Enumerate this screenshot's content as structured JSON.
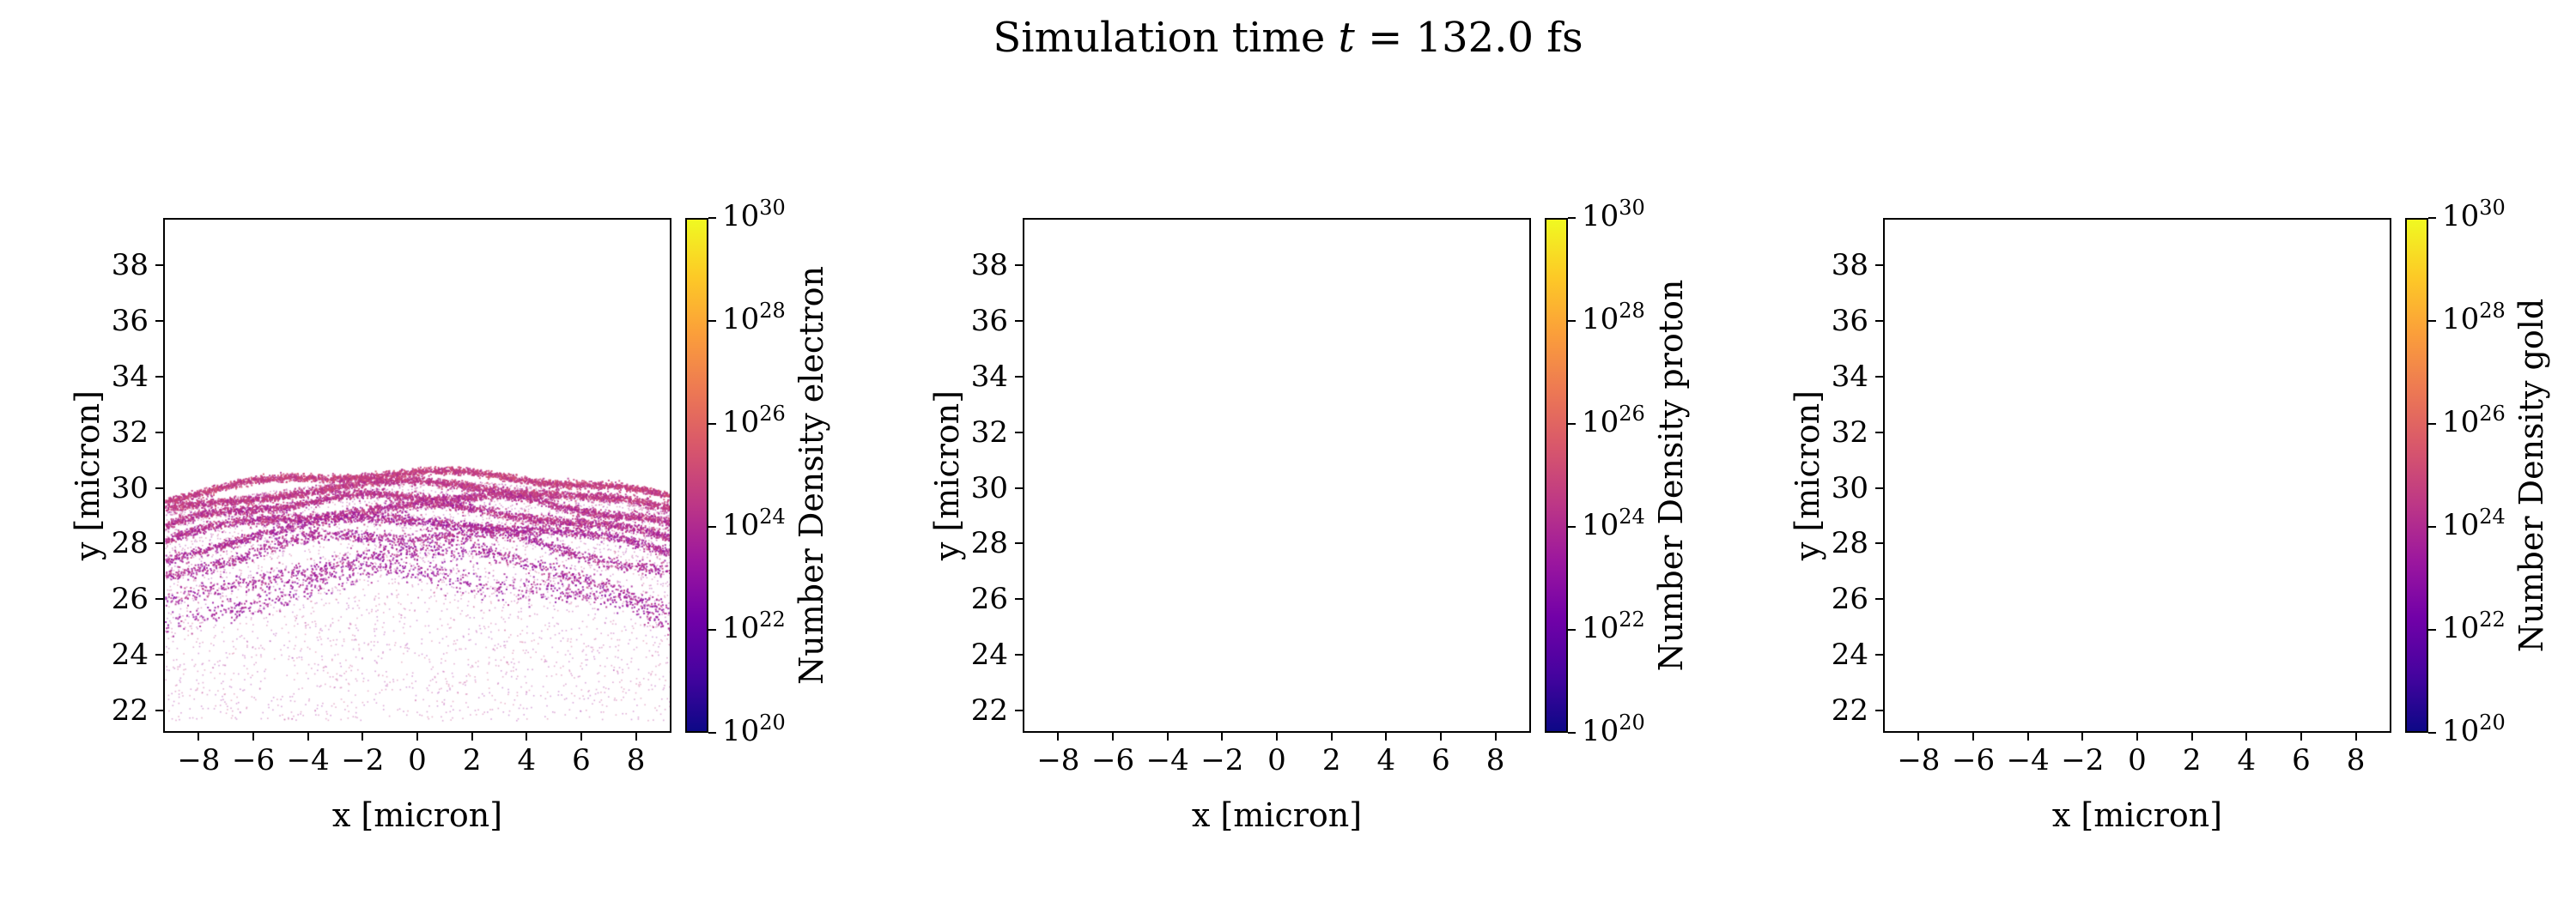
{
  "title": {
    "prefix": "Simulation time ",
    "math_var": "t",
    "suffix": " = 132.0 fs"
  },
  "colors": {
    "background": "#ffffff",
    "axis": "#000000",
    "plasma_stops": [
      "#0d0887",
      "#46039f",
      "#7201a8",
      "#9c179e",
      "#bd3786",
      "#d8576b",
      "#ed7953",
      "#fb9f3a",
      "#fdca26",
      "#f0f921"
    ]
  },
  "chart_data": [
    {
      "type": "scatter",
      "species": "electron",
      "xlabel": "x [micron]",
      "ylabel": "y [micron]",
      "xlim": [
        -9.3,
        9.3
      ],
      "ylim": [
        21.2,
        39.7
      ],
      "xticks": [
        -8,
        -6,
        -4,
        -2,
        0,
        2,
        4,
        6,
        8
      ],
      "yticks": [
        22,
        24,
        26,
        28,
        30,
        32,
        34,
        36,
        38
      ],
      "grid": false,
      "colorbar": {
        "label": "Number Density electron",
        "scale": "log",
        "tick_exponents": [
          20,
          22,
          24,
          26,
          28,
          30
        ],
        "range_exponents": [
          20,
          30
        ],
        "colormap": "plasma"
      },
      "content": {
        "empty": false,
        "note": "dense filamentary electron layers arcing across x, concentrated near y = 28-30.7 micron, with a diffuse low-density halo extending down to y = 22",
        "filaments": [
          {
            "y0": 30.55,
            "sag": 0.9,
            "wiggle": 0.12,
            "freq": 0.9,
            "phase": 0.5,
            "sigma": 0.07,
            "points": 2600,
            "t": [
              0.4,
              0.54
            ]
          },
          {
            "y0": 30.15,
            "sag": 1.0,
            "wiggle": 0.15,
            "freq": 0.7,
            "phase": 2.1,
            "sigma": 0.08,
            "points": 2500,
            "t": [
              0.38,
              0.52
            ]
          },
          {
            "y0": 29.75,
            "sag": 1.1,
            "wiggle": 0.12,
            "freq": 1.1,
            "phase": 4.0,
            "sigma": 0.08,
            "points": 2200,
            "t": [
              0.35,
              0.5
            ]
          },
          {
            "y0": 29.3,
            "sag": 1.2,
            "wiggle": 0.15,
            "freq": 0.8,
            "phase": 1.2,
            "sigma": 0.09,
            "points": 2000,
            "t": [
              0.33,
              0.5
            ]
          },
          {
            "y0": 28.85,
            "sag": 1.3,
            "wiggle": 0.18,
            "freq": 0.6,
            "phase": 3.3,
            "sigma": 0.1,
            "points": 1600,
            "t": [
              0.3,
              0.48
            ]
          },
          {
            "y0": 28.35,
            "sag": 1.5,
            "wiggle": 0.2,
            "freq": 0.9,
            "phase": 5.1,
            "sigma": 0.12,
            "points": 1200,
            "t": [
              0.3,
              0.46
            ]
          },
          {
            "y0": 27.6,
            "sag": 1.8,
            "wiggle": 0.25,
            "freq": 0.5,
            "phase": 0.8,
            "sigma": 0.16,
            "points": 900,
            "t": [
              0.28,
              0.45
            ]
          },
          {
            "y0": 26.9,
            "sag": 2.0,
            "wiggle": 0.3,
            "freq": 0.7,
            "phase": 2.6,
            "sigma": 0.22,
            "points": 700,
            "t": [
              0.28,
              0.42
            ]
          }
        ],
        "haze": {
          "y_top": 30.3,
          "sag": 1.2,
          "y_bottom": 21.6,
          "falloff": 1.8,
          "points": 4200,
          "t": [
            0.3,
            0.5
          ]
        }
      }
    },
    {
      "type": "scatter",
      "species": "proton",
      "xlabel": "x [micron]",
      "ylabel": "y [micron]",
      "xlim": [
        -9.3,
        9.3
      ],
      "ylim": [
        21.2,
        39.7
      ],
      "xticks": [
        -8,
        -6,
        -4,
        -2,
        0,
        2,
        4,
        6,
        8
      ],
      "yticks": [
        22,
        24,
        26,
        28,
        30,
        32,
        34,
        36,
        38
      ],
      "grid": false,
      "colorbar": {
        "label": "Number Density proton",
        "scale": "log",
        "tick_exponents": [
          20,
          22,
          24,
          26,
          28,
          30
        ],
        "range_exponents": [
          20,
          30
        ],
        "colormap": "plasma"
      },
      "content": {
        "empty": true,
        "note": "no visible proton density data"
      }
    },
    {
      "type": "scatter",
      "species": "gold",
      "xlabel": "x [micron]",
      "ylabel": "y [micron]",
      "xlim": [
        -9.3,
        9.3
      ],
      "ylim": [
        21.2,
        39.7
      ],
      "xticks": [
        -8,
        -6,
        -4,
        -2,
        0,
        2,
        4,
        6,
        8
      ],
      "yticks": [
        22,
        24,
        26,
        28,
        30,
        32,
        34,
        36,
        38
      ],
      "grid": false,
      "colorbar": {
        "label": "Number Density gold",
        "scale": "log",
        "tick_exponents": [
          20,
          22,
          24,
          26,
          28,
          30
        ],
        "range_exponents": [
          20,
          30
        ],
        "colormap": "plasma"
      },
      "content": {
        "empty": true,
        "note": "no visible gold density data"
      }
    }
  ]
}
